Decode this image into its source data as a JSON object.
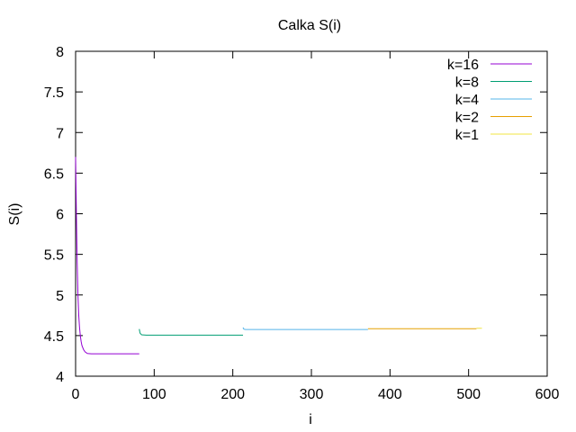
{
  "chart_data": {
    "type": "line",
    "title": "Calka S(i)",
    "xlabel": "i",
    "ylabel": "S(i)",
    "xlim": [
      0,
      600
    ],
    "ylim": [
      4,
      8
    ],
    "x_ticks": [
      0,
      100,
      200,
      300,
      400,
      500,
      600
    ],
    "y_ticks": [
      4,
      4.5,
      5,
      5.5,
      6,
      6.5,
      7,
      7.5,
      8
    ],
    "y_tick_labels": [
      "4",
      "4.5",
      "5",
      "5.5",
      "6",
      "6.5",
      "7",
      "7.5",
      "8"
    ],
    "grid": false,
    "legend_position": "top-right",
    "series": [
      {
        "name": "k=16",
        "color": "#9400d3",
        "points": [
          [
            0,
            6.7
          ],
          [
            1,
            6.0
          ],
          [
            2,
            5.4
          ],
          [
            3,
            5.0
          ],
          [
            4,
            4.75
          ],
          [
            5,
            4.6
          ],
          [
            6,
            4.5
          ],
          [
            7,
            4.43
          ],
          [
            8,
            4.38
          ],
          [
            10,
            4.33
          ],
          [
            12,
            4.3
          ],
          [
            15,
            4.28
          ],
          [
            20,
            4.275
          ],
          [
            40,
            4.275
          ],
          [
            60,
            4.275
          ],
          [
            81,
            4.275
          ]
        ]
      },
      {
        "name": "k=8",
        "color": "#009e73",
        "points": [
          [
            81,
            4.58
          ],
          [
            82,
            4.53
          ],
          [
            84,
            4.51
          ],
          [
            90,
            4.505
          ],
          [
            150,
            4.505
          ],
          [
            213,
            4.505
          ]
        ]
      },
      {
        "name": "k=4",
        "color": "#56b4e9",
        "points": [
          [
            213,
            4.6
          ],
          [
            214,
            4.58
          ],
          [
            216,
            4.575
          ],
          [
            300,
            4.575
          ],
          [
            372,
            4.575
          ]
        ]
      },
      {
        "name": "k=2",
        "color": "#e69f00",
        "points": [
          [
            372,
            4.585
          ],
          [
            440,
            4.585
          ],
          [
            510,
            4.585
          ]
        ]
      },
      {
        "name": "k=1",
        "color": "#f0e442",
        "points": [
          [
            510,
            4.59
          ],
          [
            517,
            4.59
          ]
        ]
      }
    ]
  }
}
